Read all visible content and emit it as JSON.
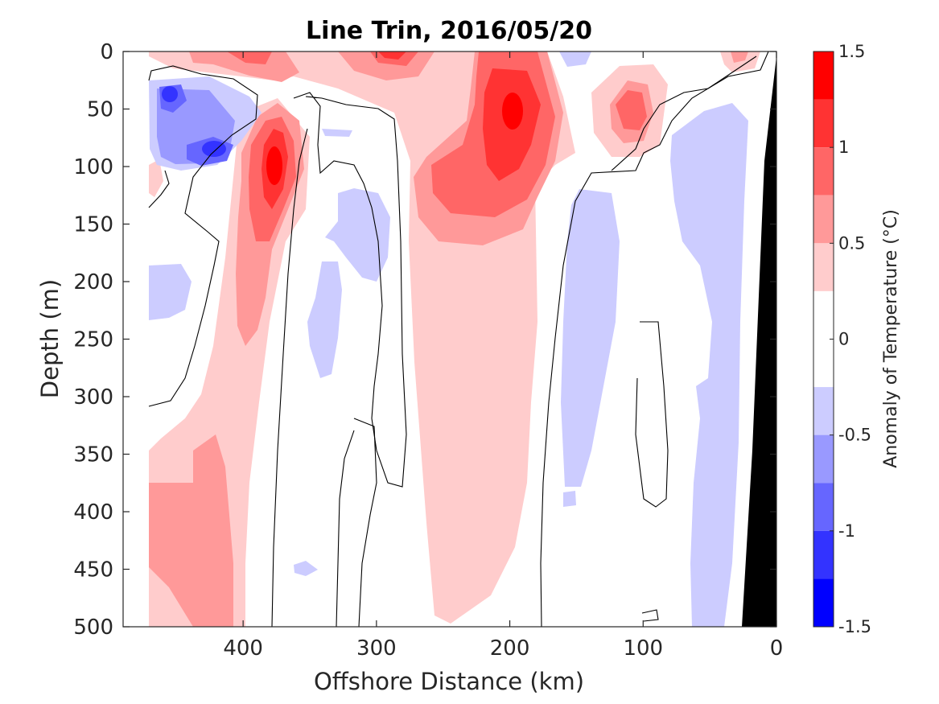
{
  "chart_data": {
    "type": "contourf",
    "title": "Line Trin, 2016/05/20",
    "xlabel": "Offshore Distance (km)",
    "ylabel": "Depth (m)",
    "colorbar_label": "Anomaly of Temperature (°C)",
    "x_axis": {
      "reversed": true,
      "range": [
        490,
        0
      ],
      "ticks": [
        400,
        300,
        200,
        100,
        0
      ],
      "tick_labels": [
        "400",
        "300",
        "200",
        "100",
        "0"
      ]
    },
    "y_axis": {
      "reversed": true,
      "range": [
        0,
        500
      ],
      "ticks": [
        0,
        50,
        100,
        150,
        200,
        250,
        300,
        350,
        400,
        450,
        500
      ],
      "tick_labels": [
        "0",
        "50",
        "100",
        "150",
        "200",
        "250",
        "300",
        "350",
        "400",
        "450",
        "500"
      ]
    },
    "colorbar": {
      "range": [
        -1.5,
        1.5
      ],
      "ticks": [
        1.5,
        1,
        0.5,
        0,
        -0.5,
        -1,
        -1.5
      ],
      "tick_labels": [
        "1.5",
        "1",
        "0.5",
        "0",
        "-0.5",
        "-1",
        "-1.5"
      ],
      "levels": [
        {
          "from": 1.25,
          "to": 1.5,
          "color": "#ff0000"
        },
        {
          "from": 1.0,
          "to": 1.25,
          "color": "#ff3333"
        },
        {
          "from": 0.75,
          "to": 1.0,
          "color": "#ff6666"
        },
        {
          "from": 0.5,
          "to": 0.75,
          "color": "#ff9999"
        },
        {
          "from": 0.25,
          "to": 0.5,
          "color": "#ffcccc"
        },
        {
          "from": -0.25,
          "to": 0.25,
          "color": "#ffffff"
        },
        {
          "from": -0.5,
          "to": -0.25,
          "color": "#ccccff"
        },
        {
          "from": -0.75,
          "to": -0.5,
          "color": "#9999ff"
        },
        {
          "from": -1.0,
          "to": -0.75,
          "color": "#6666ff"
        },
        {
          "from": -1.25,
          "to": -1.0,
          "color": "#3333ff"
        },
        {
          "from": -1.5,
          "to": -1.25,
          "color": "#0000ff"
        }
      ]
    },
    "data_extent_x": [
      470,
      0
    ],
    "grid": false,
    "features": [
      {
        "name": "warm-core-400km",
        "center": [
          375,
          110
        ],
        "peak_anomaly": 1.25
      },
      {
        "name": "warm-core-200km",
        "center": [
          200,
          55
        ],
        "peak_anomaly": 1.25
      },
      {
        "name": "warm-core-110km",
        "center": [
          110,
          55
        ],
        "peak_anomaly": 0.9
      },
      {
        "name": "warm-deep-420km",
        "center": [
          430,
          430
        ],
        "peak_anomaly": 0.6
      },
      {
        "name": "cold-core-440km",
        "center": [
          435,
          60
        ],
        "peak_anomaly": -1.0
      },
      {
        "name": "cold-band-140km",
        "center": [
          140,
          380
        ],
        "peak_anomaly": -0.3
      },
      {
        "name": "cold-band-50km",
        "center": [
          50,
          300
        ],
        "peak_anomaly": -0.3
      }
    ],
    "bathymetry_color": "#000000"
  }
}
